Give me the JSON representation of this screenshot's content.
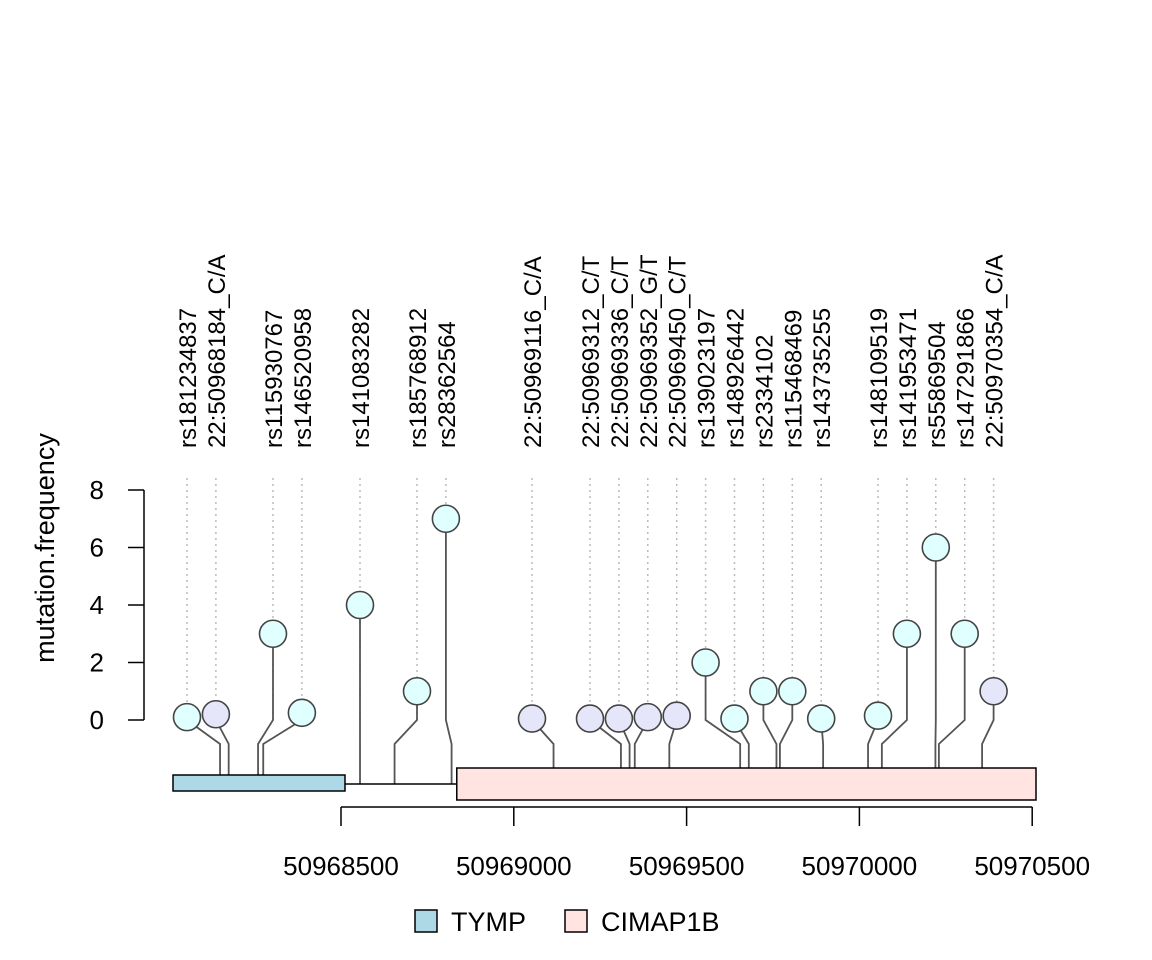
{
  "chart_data": {
    "type": "lollipop",
    "title": "",
    "ylabel": "mutation.frequency",
    "xlabel": "",
    "y_ticks": [
      "0",
      "2",
      "4",
      "6",
      "8"
    ],
    "ylim": [
      0,
      8
    ],
    "x_ticks": [
      "50968500",
      "50969000",
      "50969500",
      "50970000",
      "50970500"
    ],
    "x_tick_values": [
      50968500,
      50969000,
      50969500,
      50970000,
      50970500
    ],
    "xlim": [
      50968000,
      50970520
    ],
    "legend_position": "bottom",
    "genes": [
      {
        "name": "TYMP",
        "start": 50968000,
        "end": 50968510,
        "color": "#add8e6"
      },
      {
        "name": "CIMAP1B",
        "start": 50968835,
        "end": 50970520,
        "color": "#ffe4e1"
      }
    ],
    "intron": {
      "start": 50968510,
      "end": 50968835
    },
    "lollipop_colors": {
      "snp": "#e0ffff",
      "indel": "#e6e6fa"
    },
    "mutations": [
      {
        "label": "rs181234837",
        "pos": 50968150,
        "freq": 0.1,
        "color": "#e0ffff"
      },
      {
        "label": "22:50968184_C/A",
        "pos": 50968175,
        "freq": 0.2,
        "color": "#e6e6fa"
      },
      {
        "label": "rs115930767",
        "pos": 50968260,
        "freq": 3,
        "color": "#e0ffff"
      },
      {
        "label": "rs146520958",
        "pos": 50968275,
        "freq": 0.25,
        "color": "#e0ffff"
      },
      {
        "label": "rs141083282",
        "pos": 50968555,
        "freq": 4,
        "color": "#e0ffff"
      },
      {
        "label": "rs185768912",
        "pos": 50968655,
        "freq": 1,
        "color": "#e0ffff"
      },
      {
        "label": "rs28362564",
        "pos": 50968820,
        "freq": 7,
        "color": "#e0ffff"
      },
      {
        "label": "22:50969116_C/A",
        "pos": 50969115,
        "freq": 0.05,
        "color": "#e6e6fa"
      },
      {
        "label": "22:50969312_C/T",
        "pos": 50969310,
        "freq": 0.05,
        "color": "#e6e6fa"
      },
      {
        "label": "22:50969336_C/T",
        "pos": 50969335,
        "freq": 0.05,
        "color": "#e6e6fa"
      },
      {
        "label": "22:50969352_G/T",
        "pos": 50969350,
        "freq": 0.1,
        "color": "#e6e6fa"
      },
      {
        "label": "22:50969450_C/T",
        "pos": 50969450,
        "freq": 0.15,
        "color": "#e6e6fa"
      },
      {
        "label": "rs139023197",
        "pos": 50969655,
        "freq": 2,
        "color": "#e0ffff"
      },
      {
        "label": "rs148926442",
        "pos": 50969680,
        "freq": 0.05,
        "color": "#e0ffff"
      },
      {
        "label": "rs2334102",
        "pos": 50969760,
        "freq": 1,
        "color": "#e0ffff"
      },
      {
        "label": "rs115468469",
        "pos": 50969770,
        "freq": 1,
        "color": "#e0ffff"
      },
      {
        "label": "rs143735255",
        "pos": 50969895,
        "freq": 0.05,
        "color": "#e0ffff"
      },
      {
        "label": "rs148109519",
        "pos": 50970025,
        "freq": 0.15,
        "color": "#e0ffff"
      },
      {
        "label": "rs141953471",
        "pos": 50970065,
        "freq": 3,
        "color": "#e0ffff"
      },
      {
        "label": "rs55869504",
        "pos": 50970220,
        "freq": 6,
        "color": "#e0ffff"
      },
      {
        "label": "rs147291866",
        "pos": 50970230,
        "freq": 3,
        "color": "#e0ffff"
      },
      {
        "label": "22:50970354_C/A",
        "pos": 50970355,
        "freq": 1,
        "color": "#e6e6fa"
      }
    ]
  }
}
